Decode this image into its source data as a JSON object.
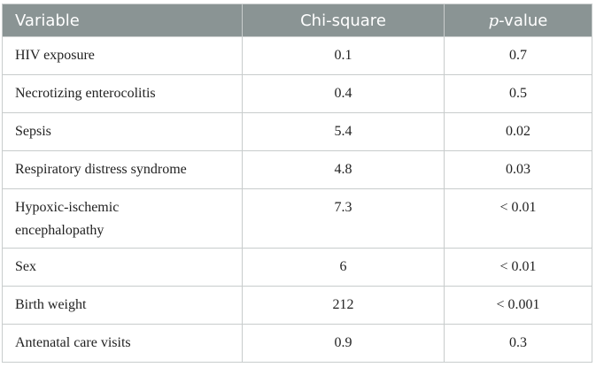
{
  "table": {
    "headers": {
      "variable": "Variable",
      "chi_square": "Chi-square",
      "p_italic": "p",
      "p_suffix": "-value"
    },
    "colors": {
      "header_bg": "#8a9494",
      "border": "#c8cccc"
    },
    "rows": [
      {
        "variable": "HIV exposure",
        "chi_square": "0.1",
        "p_value": "0.7"
      },
      {
        "variable": "Necrotizing enterocolitis",
        "chi_square": "0.4",
        "p_value": "0.5"
      },
      {
        "variable": "Sepsis",
        "chi_square": "5.4",
        "p_value": "0.02"
      },
      {
        "variable": "Respiratory distress syndrome",
        "chi_square": "4.8",
        "p_value": "0.03"
      },
      {
        "variable": "Hypoxic-ischemic encephalopathy",
        "chi_square": "7.3",
        "p_value": "< 0.01"
      },
      {
        "variable": "Sex",
        "chi_square": "6",
        "p_value": "< 0.01"
      },
      {
        "variable": "Birth weight",
        "chi_square": "212",
        "p_value": "< 0.001"
      },
      {
        "variable": "Antenatal care visits",
        "chi_square": "0.9",
        "p_value": "0.3"
      }
    ]
  }
}
